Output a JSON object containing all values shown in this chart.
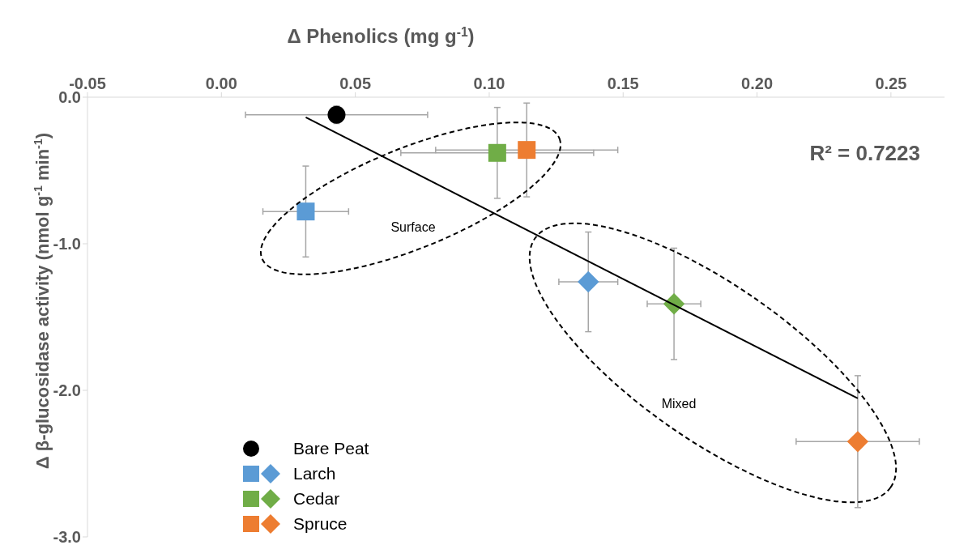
{
  "chart_data": {
    "type": "scatter",
    "xlabel": "Δ Phenolics (mg g$^{-1}$)",
    "ylabel": "Δ β-glucosidase activity (nmol g$^{-1}$ min$^{-1}$)",
    "xlim": [
      -0.05,
      0.27
    ],
    "xticks": [
      {
        "value": -0.05,
        "label": "-0.05"
      },
      {
        "value": 0,
        "label": "0.00"
      },
      {
        "value": 0.05,
        "label": "0.05"
      },
      {
        "value": 0.1,
        "label": "0.10"
      },
      {
        "value": 0.15,
        "label": "0.15"
      },
      {
        "value": 0.2,
        "label": "0.20"
      },
      {
        "value": 0.25,
        "label": "0.25"
      }
    ],
    "ylim": [
      -3,
      0
    ],
    "yticks": [
      {
        "value": -3,
        "label": "-3.0"
      },
      {
        "value": -2,
        "label": "-2.0"
      },
      {
        "value": -1,
        "label": "-1.0"
      },
      {
        "value": 0,
        "label": "0.0"
      }
    ],
    "legend": "bottom left",
    "annotations": [
      "R² = 0.7223",
      "Surface",
      "Mixed"
    ],
    "series": [
      {
        "name": "Bare Peat",
        "color": "#000000",
        "marker": "circle",
        "x": [
          0.043
        ],
        "values": [
          -0.12
        ],
        "xerrors": [
          0.034
        ],
        "errors": [
          0.06
        ]
      },
      {
        "name": "Larch",
        "color": "#5b9bd5",
        "marker": "square",
        "x": [
          0.0315
        ],
        "values": [
          -0.78
        ],
        "xerrors": [
          0.016
        ],
        "errors": [
          0.31
        ]
      },
      {
        "color": "#5b9bd5",
        "marker": "diamond",
        "x": [
          0.137
        ],
        "values": [
          -1.26
        ],
        "xerrors": [
          0.011
        ],
        "errors": [
          0.34
        ]
      },
      {
        "name": "Cedar",
        "color": "#70ad47",
        "marker": "square",
        "x": [
          0.103
        ],
        "values": [
          -0.38
        ],
        "xerrors": [
          0.036
        ],
        "errors": [
          0.31
        ]
      },
      {
        "color": "#70ad47",
        "marker": "diamond",
        "x": [
          0.169
        ],
        "values": [
          -1.41
        ],
        "xerrors": [
          0.01
        ],
        "errors": [
          0.38
        ]
      },
      {
        "name": "Spruce",
        "color": "#ed7d31",
        "marker": "square",
        "x": [
          0.114
        ],
        "values": [
          -0.36
        ],
        "xerrors": [
          0.034
        ],
        "errors": [
          0.32
        ]
      },
      {
        "color": "#ed7d31",
        "marker": "diamond",
        "x": [
          0.2376
        ],
        "values": [
          -2.35
        ],
        "xerrors": [
          0.023
        ],
        "errors": [
          0.45
        ]
      },
      {
        "type": "line",
        "color": "#000000",
        "marker": "none",
        "x": [
          0.0315,
          0.2376
        ],
        "values": [
          -0.138,
          -2.055
        ]
      }
    ]
  }
}
